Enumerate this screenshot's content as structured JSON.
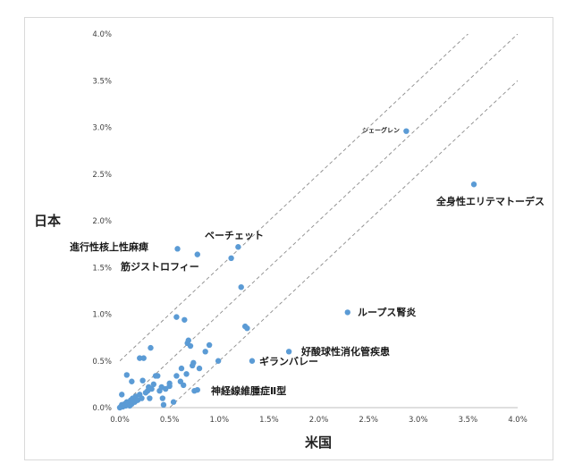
{
  "chart_data": {
    "type": "scatter",
    "xlabel": "米国",
    "ylabel": "日本",
    "xlim": [
      0,
      4.0
    ],
    "ylim": [
      0,
      4.0
    ],
    "x_ticks": [
      "0.0%",
      "0.5%",
      "1.0%",
      "1.5%",
      "2.0%",
      "2.5%",
      "3.0%",
      "3.5%",
      "4.0%"
    ],
    "y_ticks": [
      "0.0%",
      "0.5%",
      "1.0%",
      "1.5%",
      "2.0%",
      "2.5%",
      "3.0%",
      "3.5%",
      "4.0%"
    ],
    "grid": false,
    "marker_color": "#5b9bd5",
    "reference_lines": [
      {
        "slope": 1,
        "intercept": 0.5
      },
      {
        "slope": 1,
        "intercept": 0
      },
      {
        "slope": 1,
        "intercept": -0.5
      }
    ],
    "points": [
      [
        0.0,
        0.0
      ],
      [
        0.01,
        0.01
      ],
      [
        0.02,
        0.03
      ],
      [
        0.03,
        0.01
      ],
      [
        0.04,
        0.02
      ],
      [
        0.05,
        0.04
      ],
      [
        0.06,
        0.02
      ],
      [
        0.07,
        0.06
      ],
      [
        0.08,
        0.03
      ],
      [
        0.09,
        0.05
      ],
      [
        0.1,
        0.02
      ],
      [
        0.11,
        0.08
      ],
      [
        0.12,
        0.04
      ],
      [
        0.13,
        0.1
      ],
      [
        0.15,
        0.06
      ],
      [
        0.16,
        0.12
      ],
      [
        0.18,
        0.08
      ],
      [
        0.2,
        0.14
      ],
      [
        0.22,
        0.1
      ],
      [
        0.02,
        0.14
      ],
      [
        0.07,
        0.35
      ],
      [
        0.12,
        0.28
      ],
      [
        0.2,
        0.53
      ],
      [
        0.24,
        0.53
      ],
      [
        0.23,
        0.29
      ],
      [
        0.26,
        0.16
      ],
      [
        0.28,
        0.18
      ],
      [
        0.29,
        0.22
      ],
      [
        0.3,
        0.1
      ],
      [
        0.31,
        0.64
      ],
      [
        0.32,
        0.2
      ],
      [
        0.34,
        0.25
      ],
      [
        0.36,
        0.34
      ],
      [
        0.38,
        0.34
      ],
      [
        0.4,
        0.18
      ],
      [
        0.42,
        0.22
      ],
      [
        0.43,
        0.1
      ],
      [
        0.44,
        0.03
      ],
      [
        0.46,
        0.2
      ],
      [
        0.5,
        0.23
      ],
      [
        0.5,
        0.26
      ],
      [
        0.54,
        0.06
      ],
      [
        0.57,
        0.34
      ],
      [
        0.57,
        0.97
      ],
      [
        0.61,
        0.28
      ],
      [
        0.62,
        0.42
      ],
      [
        0.64,
        0.24
      ],
      [
        0.65,
        0.94
      ],
      [
        0.67,
        0.36
      ],
      [
        0.68,
        0.69
      ],
      [
        0.69,
        0.72
      ],
      [
        0.71,
        0.66
      ],
      [
        0.73,
        0.45
      ],
      [
        0.74,
        0.48
      ],
      [
        0.75,
        0.18
      ],
      [
        0.78,
        0.19
      ],
      [
        0.8,
        0.42
      ],
      [
        0.86,
        0.6
      ],
      [
        0.9,
        0.67
      ],
      [
        0.99,
        0.5
      ],
      [
        0.58,
        1.7
      ],
      [
        0.78,
        1.64
      ],
      [
        1.12,
        1.6
      ],
      [
        1.19,
        1.72
      ],
      [
        1.22,
        1.29
      ],
      [
        1.26,
        0.87
      ],
      [
        1.28,
        0.85
      ],
      [
        1.33,
        0.5
      ],
      [
        1.7,
        0.6
      ],
      [
        2.29,
        1.02
      ],
      [
        2.88,
        2.96
      ],
      [
        3.56,
        2.39
      ]
    ],
    "annotations": [
      {
        "text": "シェーグレン",
        "x": 2.88,
        "y": 2.96
      },
      {
        "text": "全身性エリテマトーデス",
        "x": 3.56,
        "y": 2.39
      },
      {
        "text": "ベーチェット",
        "x": 1.19,
        "y": 1.72
      },
      {
        "text": "進行性核上性麻痺",
        "x": 0.58,
        "y": 1.7
      },
      {
        "text": "筋ジストロフィー",
        "x": 0.78,
        "y": 1.64
      },
      {
        "text": "ループス腎炎",
        "x": 2.29,
        "y": 1.02
      },
      {
        "text": "好酸球性消化管疾患",
        "x": 1.7,
        "y": 0.6
      },
      {
        "text": "ギランバレー",
        "x": 1.33,
        "y": 0.5
      },
      {
        "text": "神経線維腫症Ⅱ型",
        "x": 0.78,
        "y": 0.19
      }
    ]
  }
}
